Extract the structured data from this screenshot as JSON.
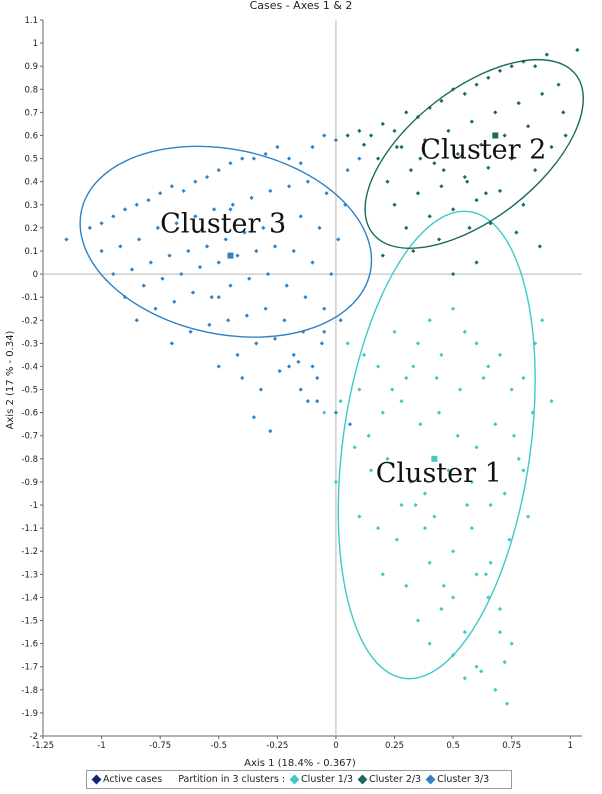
{
  "chart_data": {
    "type": "scatter",
    "title": "Cases - Axes 1 & 2",
    "xlabel": "Axis 1 (18.4% - 0.367)",
    "ylabel": "Axis 2 (17 % - 0.34)",
    "xlim": [
      -1.25,
      1.05
    ],
    "ylim": [
      -2.0,
      1.1
    ],
    "x_ticks": [
      "-1.25",
      "-1",
      "-0.75",
      "-0.5",
      "-0.25",
      "0",
      "0.25",
      "0.5",
      "0.75",
      "1"
    ],
    "x_tick_values": [
      -1.25,
      -1,
      -0.75,
      -0.5,
      -0.25,
      0,
      0.25,
      0.5,
      0.75,
      1
    ],
    "y_ticks": [
      "1.1",
      "1",
      "0.9",
      "0.8",
      "0.7",
      "0.6",
      "0.5",
      "0.4",
      "0.3",
      "0.2",
      "0.1",
      "0",
      "-0.1",
      "-0.2",
      "-0.3",
      "-0.4",
      "-0.5",
      "-0.6",
      "-0.7",
      "-0.8",
      "-0.9",
      "-1",
      "-1.1",
      "-1.2",
      "-1.3",
      "-1.4",
      "-1.5",
      "-1.6",
      "-1.7",
      "-1.8",
      "-1.9",
      "-2"
    ],
    "y_tick_values": [
      1.1,
      1,
      0.9,
      0.8,
      0.7,
      0.6,
      0.5,
      0.4,
      0.3,
      0.2,
      0.1,
      0,
      -0.1,
      -0.2,
      -0.3,
      -0.4,
      -0.5,
      -0.6,
      -0.7,
      -0.8,
      -0.9,
      -1,
      -1.1,
      -1.2,
      -1.3,
      -1.4,
      -1.5,
      -1.6,
      -1.7,
      -1.8,
      -1.9,
      -2
    ],
    "grid": false,
    "legend_position": "bottom",
    "series": [
      {
        "name": "Cluster 1/3",
        "label": "Cluster 1",
        "color": "#40c8c8",
        "centroid": [
          0.42,
          -0.8
        ],
        "ellipse": {
          "center": [
            0.43,
            -0.74
          ],
          "rx": 0.4,
          "ry": 1.02,
          "angle": 8
        },
        "x": [
          0.05,
          0.12,
          0.18,
          0.25,
          0.3,
          0.35,
          0.4,
          0.45,
          0.5,
          0.55,
          0.6,
          0.65,
          0.7,
          0.75,
          0.8,
          0.85,
          -0.05,
          0.02,
          0.1,
          0.2,
          0.28,
          0.36,
          0.44,
          0.52,
          0.6,
          0.68,
          0.76,
          0.84,
          0.15,
          0.22,
          0.32,
          0.38,
          0.48,
          0.58,
          0.66,
          0.72,
          0.8,
          0.1,
          0.18,
          0.26,
          0.34,
          0.42,
          0.5,
          0.58,
          0.66,
          0.74,
          0.2,
          0.3,
          0.4,
          0.5,
          0.6,
          0.7,
          0.35,
          0.45,
          0.55,
          0.65,
          0.75,
          0.4,
          0.5,
          0.6,
          0.7,
          0.55,
          0.62,
          0.68,
          0.72,
          0.73,
          0.0,
          0.08,
          0.14,
          0.24,
          0.33,
          0.43,
          0.53,
          0.63,
          0.78,
          0.88,
          0.92,
          0.28,
          0.38,
          0.46,
          0.56,
          0.64,
          0.82
        ],
        "y": [
          -0.3,
          -0.35,
          -0.4,
          -0.25,
          -0.45,
          -0.3,
          -0.2,
          -0.35,
          -0.15,
          -0.25,
          -0.3,
          -0.4,
          -0.35,
          -0.5,
          -0.45,
          -0.3,
          -0.6,
          -0.55,
          -0.5,
          -0.6,
          -0.55,
          -0.65,
          -0.6,
          -0.7,
          -0.75,
          -0.65,
          -0.7,
          -0.6,
          -0.85,
          -0.8,
          -0.9,
          -0.95,
          -0.85,
          -0.9,
          -1.0,
          -0.95,
          -0.85,
          -1.05,
          -1.1,
          -1.15,
          -1.0,
          -1.05,
          -1.2,
          -1.1,
          -1.25,
          -1.15,
          -1.3,
          -1.35,
          -1.25,
          -1.4,
          -1.3,
          -1.45,
          -1.5,
          -1.45,
          -1.55,
          -1.4,
          -1.6,
          -1.6,
          -1.65,
          -1.7,
          -1.55,
          -1.75,
          -1.72,
          -1.8,
          -1.68,
          -1.86,
          -0.9,
          -0.75,
          -0.7,
          -0.5,
          -0.4,
          -0.45,
          -0.5,
          -0.45,
          -0.8,
          -0.2,
          -0.55,
          -1.0,
          -1.1,
          -1.35,
          -1.0,
          -1.3,
          -1.05
        ]
      },
      {
        "name": "Cluster 2/3",
        "label": "Cluster 2",
        "color": "#1b6b62",
        "centroid": [
          0.68,
          0.6
        ],
        "ellipse": {
          "center": [
            0.59,
            0.52
          ],
          "rx": 0.55,
          "ry": 0.28,
          "angle": -38
        },
        "x": [
          0.15,
          0.2,
          0.25,
          0.3,
          0.35,
          0.4,
          0.45,
          0.5,
          0.55,
          0.6,
          0.65,
          0.7,
          0.75,
          0.8,
          0.85,
          0.9,
          0.95,
          1.03,
          0.18,
          0.28,
          0.38,
          0.48,
          0.58,
          0.68,
          0.78,
          0.88,
          0.98,
          0.22,
          0.32,
          0.42,
          0.52,
          0.62,
          0.72,
          0.82,
          0.92,
          0.25,
          0.35,
          0.45,
          0.55,
          0.65,
          0.75,
          0.85,
          0.3,
          0.4,
          0.5,
          0.6,
          0.7,
          0.8,
          0.05,
          0.1,
          0.12,
          0.33,
          0.44,
          0.57,
          0.66,
          0.77,
          0.87,
          0.97,
          0.5,
          0.6,
          0.2,
          0.26,
          0.36,
          0.46,
          0.56,
          0.64
        ],
        "y": [
          0.6,
          0.65,
          0.62,
          0.7,
          0.68,
          0.72,
          0.75,
          0.8,
          0.78,
          0.82,
          0.85,
          0.88,
          0.9,
          0.92,
          0.9,
          0.95,
          0.82,
          0.97,
          0.5,
          0.55,
          0.58,
          0.62,
          0.66,
          0.7,
          0.74,
          0.78,
          0.6,
          0.4,
          0.45,
          0.48,
          0.52,
          0.56,
          0.6,
          0.64,
          0.55,
          0.3,
          0.35,
          0.38,
          0.42,
          0.46,
          0.5,
          0.45,
          0.2,
          0.25,
          0.28,
          0.32,
          0.36,
          0.3,
          0.6,
          0.62,
          0.56,
          0.1,
          0.15,
          0.2,
          0.22,
          0.18,
          0.12,
          0.7,
          0.0,
          0.05,
          0.08,
          0.55,
          0.5,
          0.45,
          0.4,
          0.35
        ]
      },
      {
        "name": "Cluster 3/3",
        "label": "Cluster 3",
        "color": "#2e82c7",
        "centroid": [
          -0.45,
          0.08
        ],
        "ellipse": {
          "center": [
            -0.47,
            0.14
          ],
          "rx": 0.63,
          "ry": 0.4,
          "angle": 12
        },
        "x": [
          -1.15,
          -1.05,
          -1.0,
          -0.95,
          -0.9,
          -0.85,
          -0.8,
          -0.75,
          -0.7,
          -0.65,
          -0.6,
          -0.55,
          -0.5,
          -0.45,
          -0.4,
          -0.35,
          -0.3,
          -0.25,
          -0.2,
          -0.15,
          -0.1,
          -0.05,
          0.0,
          0.05,
          0.1,
          -1.0,
          -0.92,
          -0.84,
          -0.76,
          -0.68,
          -0.6,
          -0.52,
          -0.44,
          -0.36,
          -0.28,
          -0.2,
          -0.12,
          -0.04,
          0.04,
          -0.95,
          -0.87,
          -0.79,
          -0.71,
          -0.63,
          -0.55,
          -0.47,
          -0.39,
          -0.31,
          -0.23,
          -0.15,
          -0.07,
          0.01,
          -0.9,
          -0.82,
          -0.74,
          -0.66,
          -0.58,
          -0.5,
          -0.42,
          -0.34,
          -0.26,
          -0.18,
          -0.1,
          -0.02,
          -0.85,
          -0.77,
          -0.69,
          -0.61,
          -0.53,
          -0.45,
          -0.37,
          -0.29,
          -0.21,
          -0.13,
          -0.05,
          -0.7,
          -0.62,
          -0.54,
          -0.46,
          -0.38,
          -0.3,
          -0.22,
          -0.14,
          -0.06,
          -0.5,
          -0.42,
          -0.34,
          -0.26,
          -0.18,
          -0.1,
          -0.4,
          -0.32,
          -0.24,
          -0.16,
          -0.08,
          -0.08,
          0.0,
          0.06,
          -0.5,
          -0.45,
          -0.35,
          -0.28,
          -0.2,
          -0.15,
          -0.12,
          -0.05,
          0.02
        ],
        "y": [
          0.15,
          0.2,
          0.22,
          0.25,
          0.28,
          0.3,
          0.32,
          0.35,
          0.38,
          0.36,
          0.4,
          0.42,
          0.45,
          0.48,
          0.5,
          0.5,
          0.52,
          0.55,
          0.5,
          0.48,
          0.55,
          0.6,
          0.58,
          0.45,
          0.5,
          0.1,
          0.12,
          0.15,
          0.2,
          0.22,
          0.25,
          0.28,
          0.3,
          0.33,
          0.36,
          0.38,
          0.4,
          0.35,
          0.3,
          0.0,
          0.02,
          0.05,
          0.08,
          0.1,
          0.12,
          0.15,
          0.18,
          0.2,
          0.22,
          0.25,
          0.2,
          0.15,
          -0.1,
          -0.05,
          -0.02,
          0.0,
          0.03,
          0.05,
          0.08,
          0.1,
          0.12,
          0.1,
          0.05,
          0.0,
          -0.2,
          -0.15,
          -0.12,
          -0.08,
          -0.1,
          -0.05,
          -0.02,
          0.0,
          -0.05,
          -0.1,
          -0.15,
          -0.3,
          -0.25,
          -0.22,
          -0.2,
          -0.18,
          -0.15,
          -0.2,
          -0.25,
          -0.3,
          -0.4,
          -0.35,
          -0.3,
          -0.28,
          -0.35,
          -0.4,
          -0.45,
          -0.5,
          -0.42,
          -0.38,
          -0.45,
          -0.55,
          -0.6,
          -0.65,
          -0.1,
          0.28,
          -0.62,
          -0.68,
          -0.4,
          -0.5,
          -0.55,
          -0.25,
          -0.2
        ]
      }
    ],
    "legend": {
      "active_cases": "Active cases",
      "partition_label": "Partition in 3 clusters :",
      "items": [
        "Cluster 1/3",
        "Cluster 2/3",
        "Cluster 3/3"
      ],
      "active_color": "#12237a"
    }
  }
}
